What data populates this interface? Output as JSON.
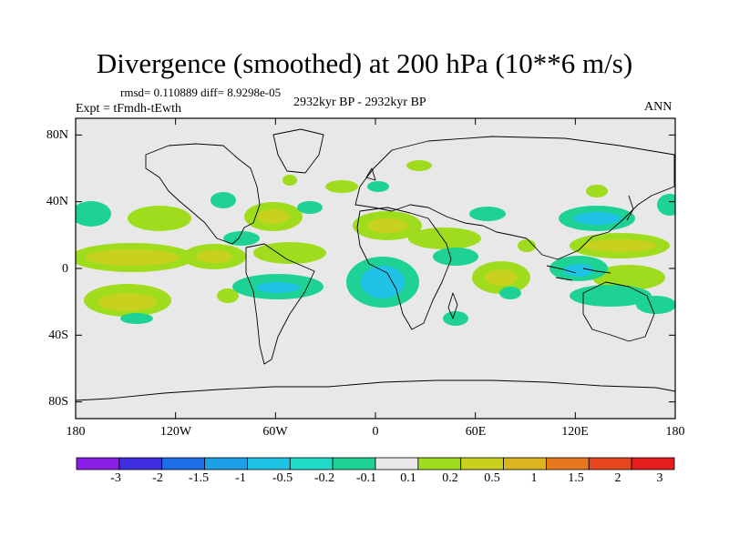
{
  "title": "Divergence (smoothed) at 200 hPa (10**6 m/s)",
  "stats_line": "rmsd= 0.110889 diff= 8.9298e-05",
  "experiment": "Expt = tFmdh-tEwth",
  "period": "2932kyr BP - 2932kyr BP",
  "season": "ANN",
  "map": {
    "projection": "cylindrical-equidistant",
    "lon_range": [
      -180,
      180
    ],
    "lat_range": [
      -90,
      90
    ],
    "background_color": "#e8e8e8",
    "lat_ticks": [
      {
        "value": 80,
        "label": "80N"
      },
      {
        "value": 40,
        "label": "40N"
      },
      {
        "value": 0,
        "label": "0"
      },
      {
        "value": -40,
        "label": "40S"
      },
      {
        "value": -80,
        "label": "80S"
      }
    ],
    "lon_ticks": [
      {
        "value": -180,
        "label": "180"
      },
      {
        "value": -120,
        "label": "120W"
      },
      {
        "value": -60,
        "label": "60W"
      },
      {
        "value": 0,
        "label": "0"
      },
      {
        "value": 60,
        "label": "60E"
      },
      {
        "value": 120,
        "label": "120E"
      },
      {
        "value": 180,
        "label": "180"
      }
    ]
  },
  "colorbar": {
    "labels": [
      "-3",
      "-2",
      "-1.5",
      "-1",
      "-0.5",
      "-0.2",
      "-0.1",
      "0.1",
      "0.2",
      "0.5",
      "1",
      "1.5",
      "2",
      "3"
    ],
    "colors": [
      "#8a1ee6",
      "#3f2fe0",
      "#1e6ee6",
      "#1e9fe6",
      "#1ec3e6",
      "#1edcc8",
      "#1ed296",
      "#e8e8e8",
      "#a0dc1e",
      "#c8d21e",
      "#dcb41e",
      "#e6781e",
      "#e6461e",
      "#e61e1e"
    ]
  }
}
